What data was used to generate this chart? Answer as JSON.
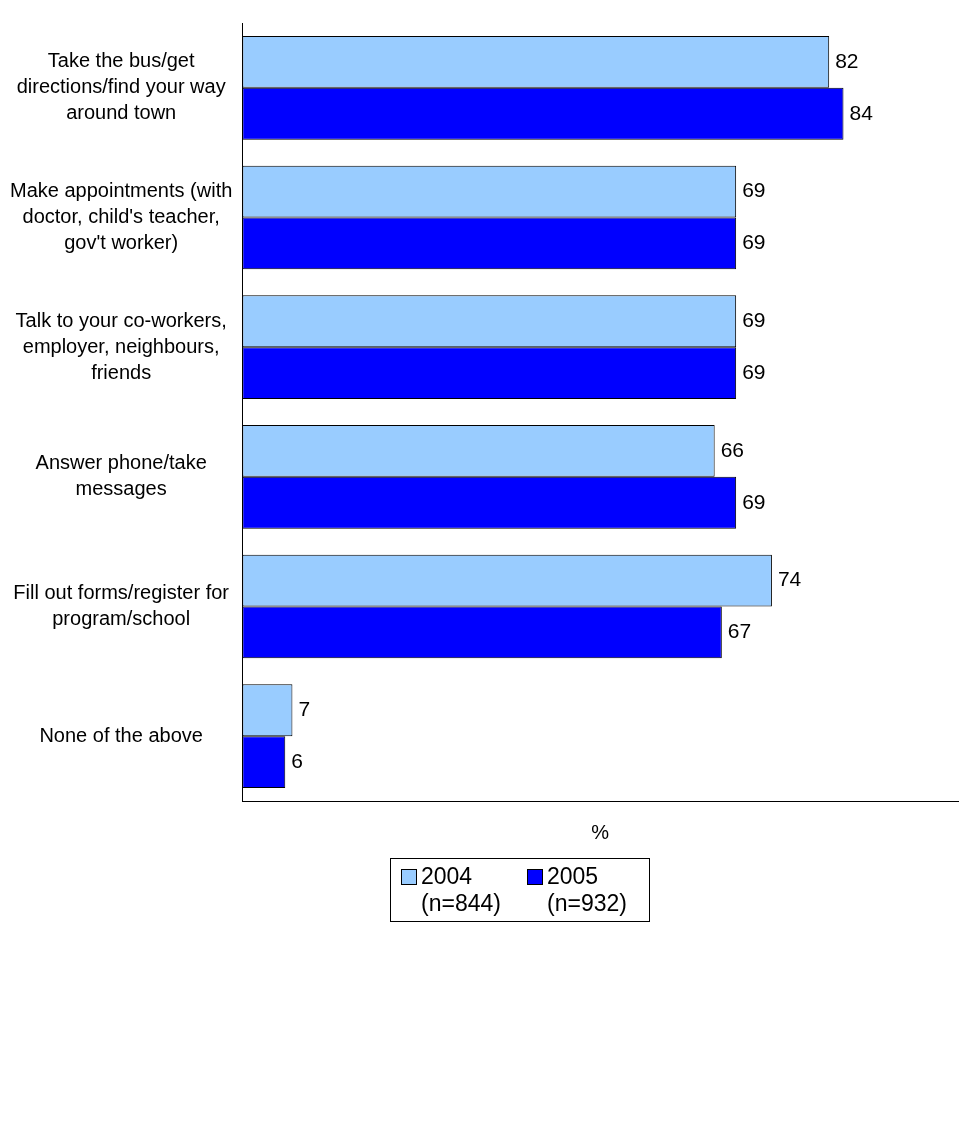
{
  "chart_data": {
    "type": "bar",
    "orientation": "horizontal",
    "categories": [
      "Take the bus/get directions/find your way around town",
      "Make appointments (with doctor, child's teacher, gov't worker)",
      "Talk to your co-workers, employer, neighbours, friends",
      "Answer phone/take messages",
      "Fill out forms/register for program/school",
      "None of the above"
    ],
    "series": [
      {
        "name": "2004 (n=844)",
        "color": "#99ccff",
        "values": [
          82,
          69,
          69,
          66,
          74,
          7
        ]
      },
      {
        "name": "2005 (n=932)",
        "color": "#0000ff",
        "values": [
          84,
          69,
          69,
          69,
          67,
          6
        ]
      }
    ],
    "xlabel": "%",
    "xlim": [
      0,
      100
    ],
    "tick_labels": "y",
    "data_labels": true,
    "grid": false,
    "legend": "bottom"
  }
}
